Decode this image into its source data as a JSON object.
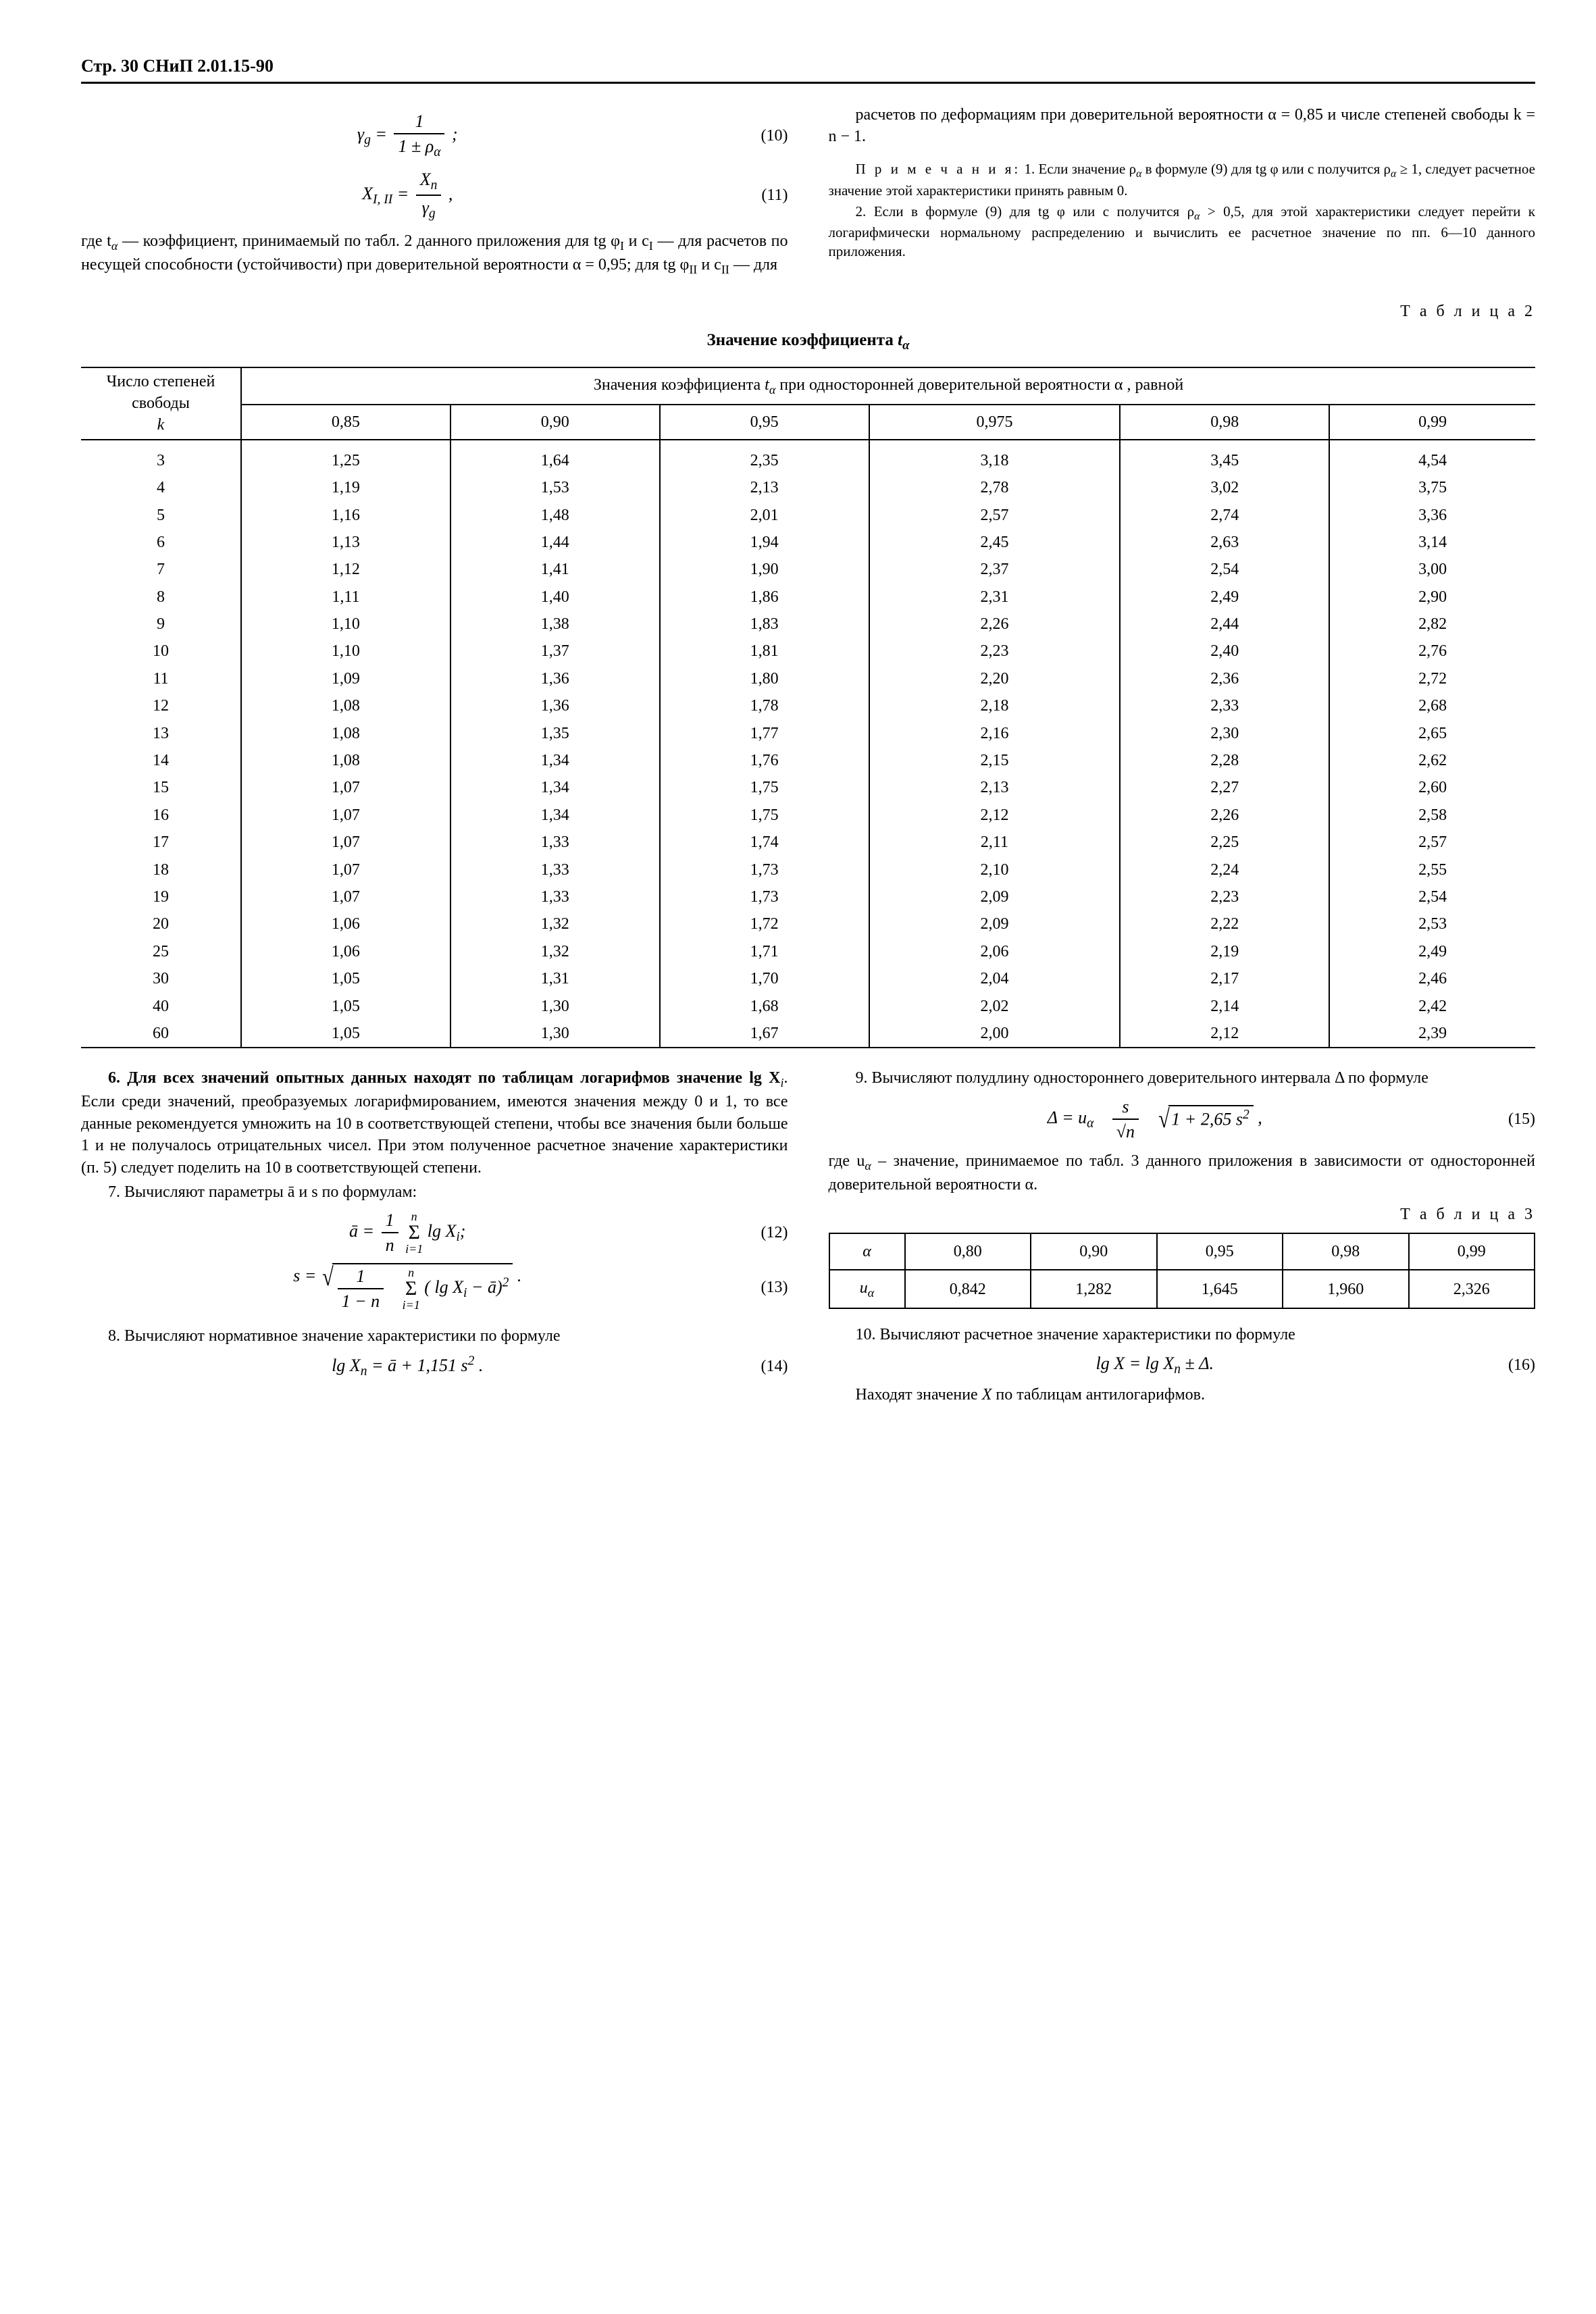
{
  "page": {
    "header": "Стр. 30  СНиП 2.01.15-90"
  },
  "top": {
    "eq10_left": "γ",
    "eq10_left_sub": "g",
    "eq10_num": "1",
    "eq10_den_pre": "1 ± ρ",
    "eq10_den_sub": "α",
    "eq10_tail": " ;",
    "eq10_num_label": "(10)",
    "eq11_left": "X",
    "eq11_left_sub": "I, II",
    "eq11_num": "X",
    "eq11_num_sub": "n",
    "eq11_den": "γ",
    "eq11_den_sub": "g",
    "eq11_tail": " ,",
    "eq11_num_label": "(11)",
    "where1": "где t",
    "where1_sub": "α",
    "where1_rest": " — коэффициент, принимаемый по  табл.  2 данного  приложения  для   tg φ",
    "where1_sub2": "I",
    "where1_rest2": "   и   c",
    "where1_sub3": "I",
    "where1_rest3": " — для  расчетов  по  несущей  способности (устойчивости)  при  доверительной  вероятности   α = 0,95;  для  tg φ",
    "where1_sub4": "II",
    "where1_rest4": "  и  c",
    "where1_sub5": "II",
    "where1_rest5": " — для",
    "right1": "расчетов  по  деформациям  при доверительной  вероятности   α = 0,85   и   числе степеней свободы  k = n − 1.",
    "note_label": "П р и м е ч а н и я:",
    "note1_a": " 1. Если значение  ρ",
    "note1_sub": "α",
    "note1_b": "  в  формуле (9) для  tg φ  или  c  получится  ρ",
    "note1_sub2": "α",
    "note1_c": " ≥ 1,  следует расчетное значение этой характеристики принять равным 0.",
    "note2_a": "2.  Если в  формуле (9)  для  tg φ  или c  получится  ρ",
    "note2_sub": "α",
    "note2_b": " > 0,5, для этой характеристики следует перейти к логарифмически нормальному распределению и вычислить ее расчетное значение по пп. 6—10 данного приложения."
  },
  "table2": {
    "label": "Т а б л и ц а 2",
    "title_pre": "Значение коэффициента ",
    "title_var": "t",
    "title_sub": "α",
    "head_k": "Число степеней свободы",
    "head_k_var": "k",
    "head_span_a": "Значения коэффициента ",
    "head_span_var": "t",
    "head_span_sub": "α",
    "head_span_b": " при односторонней доверительной вероятности  α , равной",
    "alphas": [
      "0,85",
      "0,90",
      "0,95",
      "0,975",
      "0,98",
      "0,99"
    ],
    "rows": [
      {
        "k": "3",
        "v": [
          "1,25",
          "1,64",
          "2,35",
          "3,18",
          "3,45",
          "4,54"
        ]
      },
      {
        "k": "4",
        "v": [
          "1,19",
          "1,53",
          "2,13",
          "2,78",
          "3,02",
          "3,75"
        ]
      },
      {
        "k": "5",
        "v": [
          "1,16",
          "1,48",
          "2,01",
          "2,57",
          "2,74",
          "3,36"
        ]
      },
      {
        "k": "6",
        "v": [
          "1,13",
          "1,44",
          "1,94",
          "2,45",
          "2,63",
          "3,14"
        ]
      },
      {
        "k": "7",
        "v": [
          "1,12",
          "1,41",
          "1,90",
          "2,37",
          "2,54",
          "3,00"
        ]
      },
      {
        "k": "8",
        "v": [
          "1,11",
          "1,40",
          "1,86",
          "2,31",
          "2,49",
          "2,90"
        ]
      },
      {
        "k": "9",
        "v": [
          "1,10",
          "1,38",
          "1,83",
          "2,26",
          "2,44",
          "2,82"
        ]
      },
      {
        "k": "10",
        "v": [
          "1,10",
          "1,37",
          "1,81",
          "2,23",
          "2,40",
          "2,76"
        ]
      },
      {
        "k": "11",
        "v": [
          "1,09",
          "1,36",
          "1,80",
          "2,20",
          "2,36",
          "2,72"
        ]
      },
      {
        "k": "12",
        "v": [
          "1,08",
          "1,36",
          "1,78",
          "2,18",
          "2,33",
          "2,68"
        ]
      },
      {
        "k": "13",
        "v": [
          "1,08",
          "1,35",
          "1,77",
          "2,16",
          "2,30",
          "2,65"
        ]
      },
      {
        "k": "14",
        "v": [
          "1,08",
          "1,34",
          "1,76",
          "2,15",
          "2,28",
          "2,62"
        ]
      },
      {
        "k": "15",
        "v": [
          "1,07",
          "1,34",
          "1,75",
          "2,13",
          "2,27",
          "2,60"
        ]
      },
      {
        "k": "16",
        "v": [
          "1,07",
          "1,34",
          "1,75",
          "2,12",
          "2,26",
          "2,58"
        ]
      },
      {
        "k": "17",
        "v": [
          "1,07",
          "1,33",
          "1,74",
          "2,11",
          "2,25",
          "2,57"
        ]
      },
      {
        "k": "18",
        "v": [
          "1,07",
          "1,33",
          "1,73",
          "2,10",
          "2,24",
          "2,55"
        ]
      },
      {
        "k": "19",
        "v": [
          "1,07",
          "1,33",
          "1,73",
          "2,09",
          "2,23",
          "2,54"
        ]
      },
      {
        "k": "20",
        "v": [
          "1,06",
          "1,32",
          "1,72",
          "2,09",
          "2,22",
          "2,53"
        ]
      },
      {
        "k": "25",
        "v": [
          "1,06",
          "1,32",
          "1,71",
          "2,06",
          "2,19",
          "2,49"
        ]
      },
      {
        "k": "30",
        "v": [
          "1,05",
          "1,31",
          "1,70",
          "2,04",
          "2,17",
          "2,46"
        ]
      },
      {
        "k": "40",
        "v": [
          "1,05",
          "1,30",
          "1,68",
          "2,02",
          "2,14",
          "2,42"
        ]
      },
      {
        "k": "60",
        "v": [
          "1,05",
          "1,30",
          "1,67",
          "2,00",
          "2,12",
          "2,39"
        ]
      }
    ]
  },
  "bottom": {
    "p6": "6. Для всех значений опытных данных находят по таблицам логарифмов значение lg X",
    "p6_sub": "i",
    "p6_b": ". Если среди значений,      преобразуемых      логарифмированием, имеются значения между 0 и 1, то все данные рекомендуется умножить на 10 в соответствующей степени, чтобы все значения были больше 1 и не получалось отрицательных чисел.  При этом полученное расчетное значение характеристики (п. 5) следует поделить на 10 в соответствующей степени.",
    "p7": "7. Вычисляют параметры  ā   и   s   по формулам:",
    "eq12_left": "ā = ",
    "eq12_num": "1",
    "eq12_den": "n",
    "eq12_sum_top": "n",
    "eq12_sum_bot": "i=1",
    "eq12_body_a": " lg X",
    "eq12_body_sub": "i",
    "eq12_tail": ";",
    "eq12_label": "(12)",
    "eq13_left": "s = ",
    "eq13_num": "1",
    "eq13_den": "1 − n",
    "eq13_sum_top": "n",
    "eq13_sum_bot": "i=1",
    "eq13_body_a": " ( lg X",
    "eq13_body_sub": "i",
    "eq13_body_b": " − ā)",
    "eq13_pow": "2",
    "eq13_tail": " .",
    "eq13_label": "(13)",
    "p8": "8. Вычисляют нормативное значение характеристики по формуле",
    "eq14_a": "lg X",
    "eq14_sub": "n",
    "eq14_b": " = ā + 1,151 s",
    "eq14_pow": "2",
    "eq14_c": " .",
    "eq14_label": "(14)",
    "p9": "9.  Вычисляют  полудлину  одностороннего  доверительного интервала  Δ  по формуле",
    "eq15_left": "Δ = u",
    "eq15_sub": "α",
    "eq15_frac_num": "s",
    "eq15_frac_den": "√n",
    "eq15_sqrt": "1 + 2,65 s",
    "eq15_pow": "2",
    "eq15_tail": " ,",
    "eq15_label": "(15)",
    "p9where_a": "где u",
    "p9where_sub": "α",
    "p9where_b": " – значение,  принимаемое  по табл. 3 данного приложения  в зависимости от односторонней доверительной вероятности  α.",
    "t3label": "Т а б л и ц а 3",
    "t3_row1_lbl": "α",
    "t3_row2_lbl_a": "u",
    "t3_row2_lbl_sub": "α",
    "t3_alphas": [
      "0,80",
      "0,90",
      "0,95",
      "0,98",
      "0,99"
    ],
    "t3_vals": [
      "0,842",
      "1,282",
      "1,645",
      "1,960",
      "2,326"
    ],
    "p10": "10. Вычисляют расчетное значение характеристики по формуле",
    "eq16_a": "lg X = lg X",
    "eq16_sub": "n",
    "eq16_b": " ±  Δ.",
    "eq16_label": "(16)",
    "p10b_a": "Находят  значение  ",
    "p10b_var": "X",
    "p10b_b": "  по  таблицам  антилогарифмов."
  }
}
